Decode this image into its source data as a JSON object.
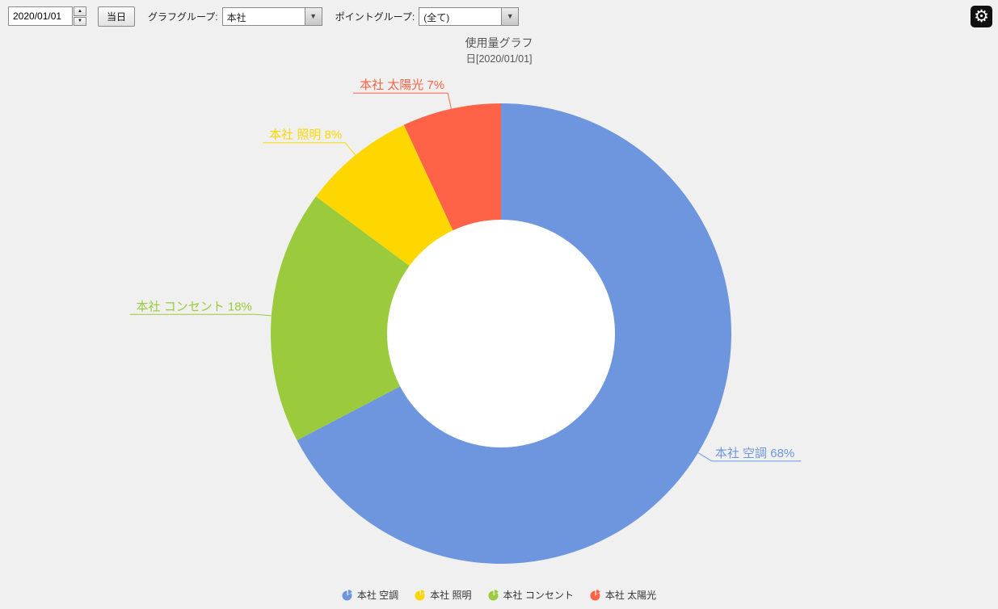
{
  "toolbar": {
    "date_value": "2020/01/01",
    "today_label": "当日",
    "graph_group_label": "グラフグループ:",
    "graph_group_value": "本社",
    "point_group_label": "ポイントグループ:",
    "point_group_value": "(全て)"
  },
  "icons": {
    "spinner_up": "▲",
    "spinner_down": "▼",
    "dropdown_arrow": "▼",
    "gear": "⚙"
  },
  "chart_data": {
    "type": "pie",
    "subtype": "donut",
    "title": "使用量グラフ",
    "subtitle": "日[2020/01/01]",
    "unit": "%",
    "legend_position": "bottom",
    "series": [
      {
        "name": "本社 空調",
        "value": 68,
        "label": "本社 空調 68%",
        "color": "#6E96DF"
      },
      {
        "name": "本社 コンセント",
        "value": 18,
        "label": "本社 コンセント 18%",
        "color": "#9BCB3C"
      },
      {
        "name": "本社 照明",
        "value": 8,
        "label": "本社 照明 8%",
        "color": "#FFD700"
      },
      {
        "name": "本社 太陽光",
        "value": 7,
        "label": "本社 太陽光 7%",
        "color": "#FF6347"
      }
    ],
    "legend": [
      {
        "name": "本社 空調",
        "color": "#6E96DF"
      },
      {
        "name": "本社 照明",
        "color": "#FFD700"
      },
      {
        "name": "本社 コンセント",
        "color": "#9BCB3C"
      },
      {
        "name": "本社 太陽光",
        "color": "#FF6347"
      }
    ]
  }
}
